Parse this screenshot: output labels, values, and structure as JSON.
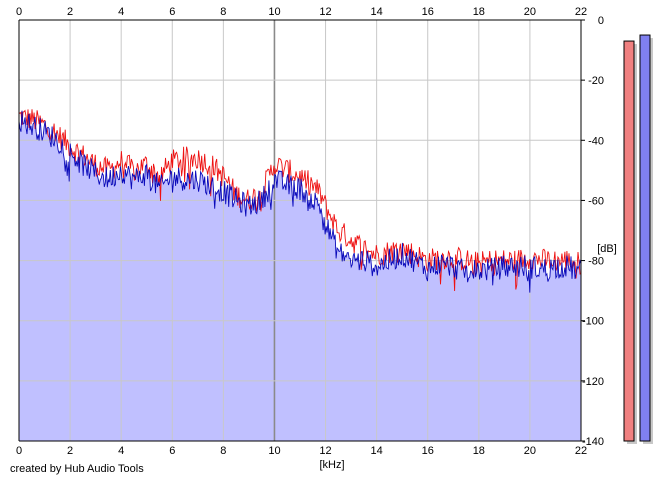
{
  "credit": "created by Hub Audio Tools",
  "chart_data": {
    "type": "area",
    "title": "",
    "xlabel": "[kHz]",
    "ylabel": "[dB]",
    "xlim": [
      0,
      22
    ],
    "ylim": [
      -140,
      0
    ],
    "x_ticks": [
      0,
      2,
      4,
      6,
      8,
      10,
      12,
      14,
      16,
      18,
      20,
      22
    ],
    "y_ticks": [
      0,
      -20,
      -40,
      -60,
      -80,
      -100,
      -120,
      -140
    ],
    "grid": true,
    "colors": {
      "red": "#ee1111",
      "blue": "#0a0aba",
      "fill": "#c0c0ff",
      "grid_minor": "#c8c8c8",
      "grid_major": "#8a8a8a",
      "meter_red": "#f08080",
      "meter_blue": "#8080f0"
    },
    "series": [
      {
        "color": "red",
        "x": [
          0,
          0.5,
          1,
          1.5,
          2,
          2.5,
          3,
          3.5,
          4,
          4.5,
          5,
          5.5,
          6,
          6.5,
          7,
          7.5,
          8,
          8.5,
          9,
          9.5,
          10,
          10.5,
          11,
          11.5,
          11.8,
          12,
          12.5,
          13,
          13.5,
          14,
          14.5,
          15,
          15.5,
          16,
          16.5,
          17,
          17.5,
          18,
          18.5,
          19,
          19.5,
          20,
          20.5,
          21,
          21.5,
          22
        ],
        "y": [
          -32,
          -33,
          -35,
          -38,
          -42,
          -45,
          -48,
          -50,
          -47,
          -50,
          -48,
          -52,
          -47,
          -46,
          -46,
          -48,
          -52,
          -58,
          -60,
          -57,
          -48,
          -50,
          -52,
          -55,
          -58,
          -62,
          -70,
          -73,
          -76,
          -78,
          -77,
          -76,
          -78,
          -80,
          -79,
          -79,
          -80,
          -81,
          -80,
          -80,
          -80,
          -79,
          -80,
          -80,
          -80,
          -81
        ]
      },
      {
        "color": "blue",
        "x": [
          0,
          0.5,
          1,
          1.5,
          2,
          2.5,
          3,
          3.5,
          4,
          4.5,
          5,
          5.5,
          6,
          6.5,
          7,
          7.5,
          8,
          8.5,
          9,
          9.5,
          10,
          10.5,
          11,
          11.5,
          11.8,
          12,
          12.5,
          13,
          13.5,
          14,
          14.5,
          15,
          15.5,
          16,
          16.5,
          17,
          17.5,
          18,
          18.5,
          19,
          19.5,
          20,
          20.5,
          21,
          21.5,
          22
        ],
        "y": [
          -33,
          -35,
          -37,
          -40,
          -44,
          -48,
          -51,
          -53,
          -50,
          -53,
          -51,
          -56,
          -52,
          -53,
          -53,
          -55,
          -57,
          -60,
          -62,
          -60,
          -53,
          -55,
          -56,
          -60,
          -62,
          -68,
          -77,
          -80,
          -80,
          -82,
          -80,
          -78,
          -80,
          -83,
          -81,
          -82,
          -84,
          -83,
          -83,
          -82,
          -82,
          -82,
          -83,
          -82,
          -82,
          -84
        ]
      }
    ],
    "meters": [
      {
        "color": "red",
        "level_db": -7
      },
      {
        "color": "blue",
        "level_db": -5
      }
    ]
  }
}
